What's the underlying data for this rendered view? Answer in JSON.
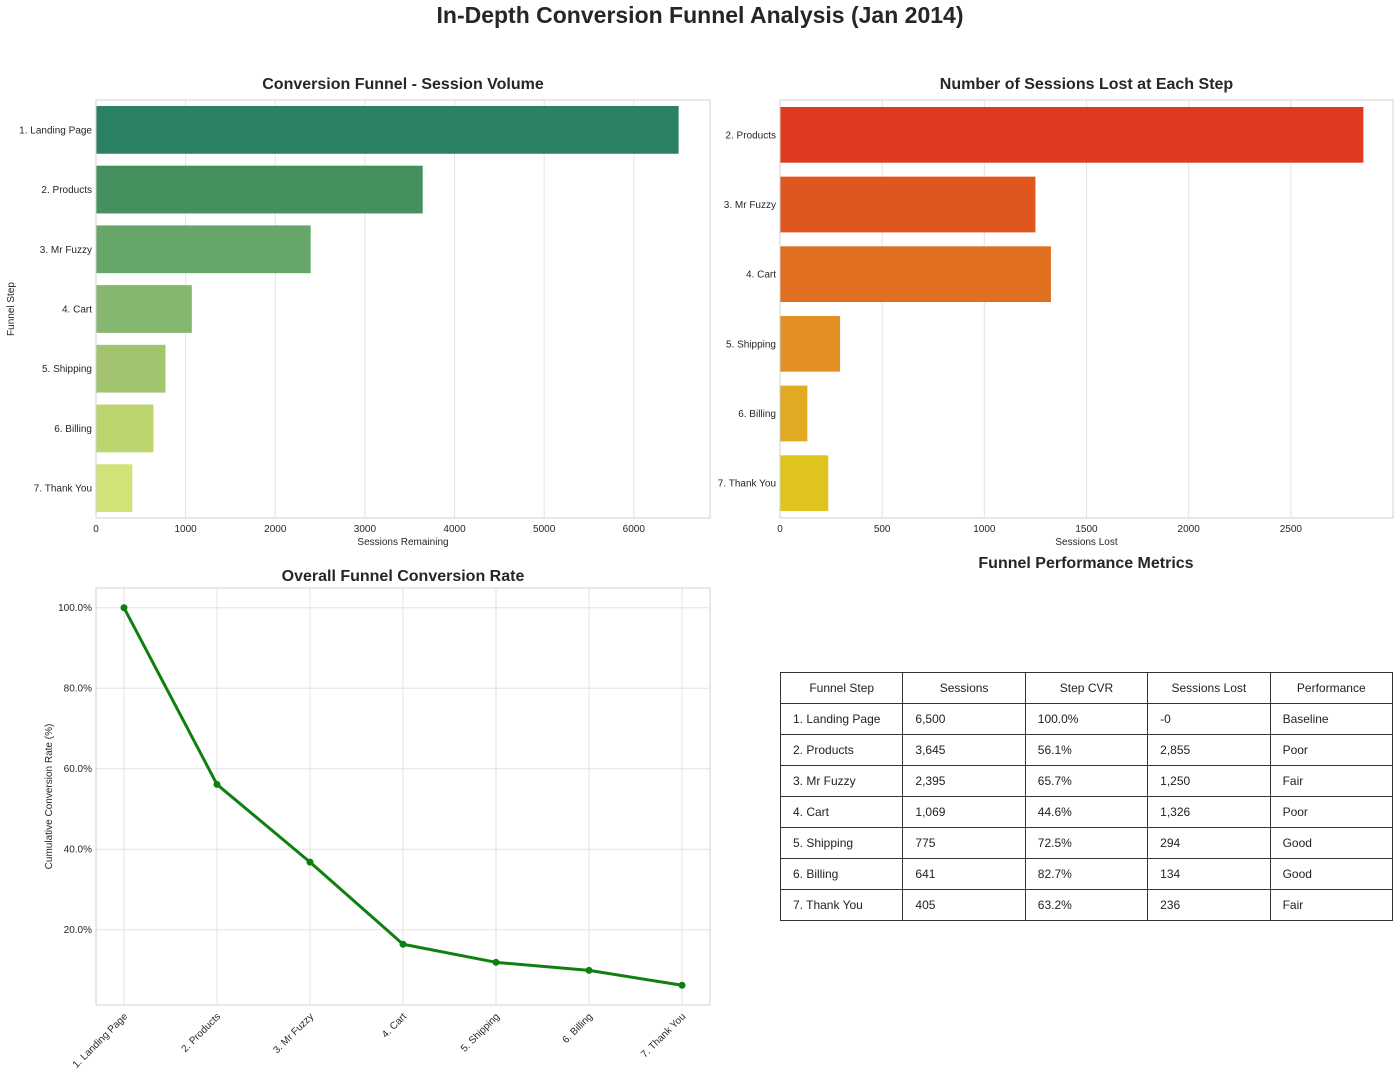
{
  "suptitle": "In-Depth Conversion Funnel Analysis (Jan 2014)",
  "chart_data": [
    {
      "type": "bar",
      "orientation": "horizontal",
      "title": "Conversion Funnel - Session Volume",
      "xlabel": "Sessions Remaining",
      "ylabel": "Funnel Step",
      "categories": [
        "1. Landing Page",
        "2. Products",
        "3. Mr Fuzzy",
        "4. Cart",
        "5. Shipping",
        "6. Billing",
        "7. Thank You"
      ],
      "values": [
        6500,
        3645,
        2395,
        1069,
        775,
        641,
        405
      ],
      "xlim": [
        0,
        6850
      ],
      "xticks": [
        0,
        1000,
        2000,
        3000,
        4000,
        5000,
        6000
      ],
      "colors": [
        "#2a8163",
        "#46905f",
        "#66a769",
        "#86b770",
        "#a2c46f",
        "#bcd56e",
        "#d2e278"
      ],
      "grid": true
    },
    {
      "type": "bar",
      "orientation": "horizontal",
      "title": "Number of Sessions Lost at Each Step",
      "xlabel": "Sessions Lost",
      "ylabel": "",
      "categories": [
        "2. Products",
        "3. Mr Fuzzy",
        "4. Cart",
        "5. Shipping",
        "6. Billing",
        "7. Thank You"
      ],
      "values": [
        2855,
        1250,
        1326,
        294,
        134,
        236
      ],
      "xlim": [
        0,
        3000
      ],
      "xticks": [
        0,
        500,
        1000,
        1500,
        2000,
        2500
      ],
      "colors": [
        "#df3a20",
        "#e0561f",
        "#e07020",
        "#e28f24",
        "#e2aa22",
        "#dfc41e"
      ],
      "grid": true
    },
    {
      "type": "line",
      "title": "Overall Funnel Conversion Rate",
      "xlabel": "",
      "ylabel": "Cumulative Conversion Rate (%)",
      "categories": [
        "1. Landing Page",
        "2. Products",
        "3. Mr Fuzzy",
        "4. Cart",
        "5. Shipping",
        "6. Billing",
        "7. Thank You"
      ],
      "values": [
        100.0,
        56.1,
        36.8,
        16.4,
        11.9,
        9.9,
        6.2
      ],
      "ylim": [
        1.3,
        104.9
      ],
      "yticks": [
        20,
        40,
        60,
        80,
        100
      ],
      "ytick_labels": [
        "20.0%",
        "40.0%",
        "60.0%",
        "80.0%",
        "100.0%"
      ],
      "color": "#0f800f",
      "grid": true
    },
    {
      "type": "table",
      "title": "Funnel Performance Metrics",
      "columns": [
        "Funnel Step",
        "Sessions",
        "Step CVR",
        "Sessions Lost",
        "Performance"
      ],
      "rows": [
        [
          "1. Landing Page",
          "6,500",
          "100.0%",
          "-0",
          "Baseline"
        ],
        [
          "2. Products",
          "3,645",
          "56.1%",
          "2,855",
          "Poor"
        ],
        [
          "3. Mr Fuzzy",
          "2,395",
          "65.7%",
          "1,250",
          "Fair"
        ],
        [
          "4. Cart",
          "1,069",
          "44.6%",
          "1,326",
          "Poor"
        ],
        [
          "5. Shipping",
          "775",
          "72.5%",
          "294",
          "Good"
        ],
        [
          "6. Billing",
          "641",
          "82.7%",
          "134",
          "Good"
        ],
        [
          "7. Thank You",
          "405",
          "63.2%",
          "236",
          "Fair"
        ]
      ]
    }
  ]
}
